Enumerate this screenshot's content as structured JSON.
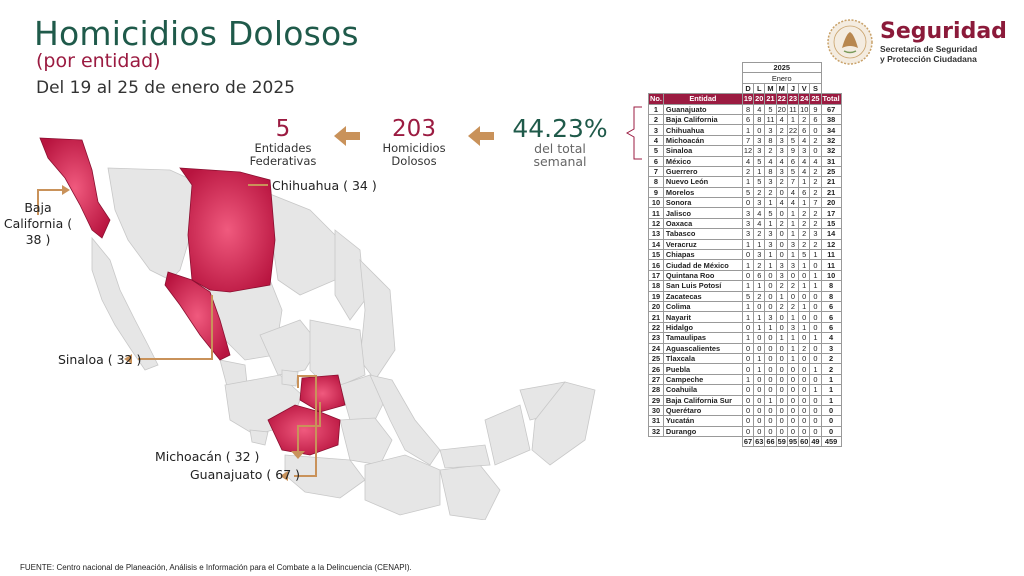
{
  "header": {
    "title": "Homicidios Dolosos",
    "subtitle": "(por entidad)",
    "dates": "Del 19 al 25 de enero de 2025"
  },
  "logo": {
    "main": "Seguridad",
    "sub1": "Secretaría de Seguridad",
    "sub2": "y Protección Ciudadana"
  },
  "stats": {
    "entities_value": "5",
    "entities_label1": "Entidades",
    "entities_label2": "Federativas",
    "homicides_value": "203",
    "homicides_label1": "Homicidios",
    "homicides_label2": "Dolosos",
    "percent_value": "44.23%",
    "percent_label1": "del total",
    "percent_label2": "semanal"
  },
  "colors": {
    "title_green": "#1f5a4a",
    "accent_red": "#9b1b41",
    "highlight_state": "#c2184a",
    "arrow_tan": "#c9925a",
    "map_grey": "#e6e6e6"
  },
  "callouts": {
    "baja_california_1": "Baja",
    "baja_california_2": "California (",
    "baja_california_3": "38 )",
    "chihuahua": "Chihuahua ( 34 )",
    "sinaloa": "Sinaloa ( 32 )",
    "michoacan": "Michoacán ( 32 )",
    "guanajuato": "Guanajuato ( 67 )"
  },
  "footer": "FUENTE: Centro nacional de Planeación, Análisis e Información para el Combate a la Delincuencia (CENAPI).",
  "chart_data": {
    "type": "table",
    "year": "2025",
    "month": "Enero",
    "day_letters": [
      "D",
      "L",
      "M",
      "M",
      "J",
      "V",
      "S"
    ],
    "day_numbers": [
      "19",
      "20",
      "21",
      "22",
      "23",
      "24",
      "25"
    ],
    "columns": [
      "No.",
      "Entidad",
      "19",
      "20",
      "21",
      "22",
      "23",
      "24",
      "25",
      "Total"
    ],
    "rows": [
      {
        "no": "1",
        "entidad": "Guanajuato",
        "values": [
          8,
          4,
          5,
          20,
          11,
          10,
          9
        ],
        "total": 67
      },
      {
        "no": "2",
        "entidad": "Baja California",
        "values": [
          6,
          8,
          11,
          4,
          1,
          2,
          6
        ],
        "total": 38
      },
      {
        "no": "3",
        "entidad": "Chihuahua",
        "values": [
          1,
          0,
          3,
          2,
          22,
          6,
          0
        ],
        "total": 34
      },
      {
        "no": "4",
        "entidad": "Michoacán",
        "values": [
          7,
          3,
          8,
          3,
          5,
          4,
          2
        ],
        "total": 32
      },
      {
        "no": "5",
        "entidad": "Sinaloa",
        "values": [
          12,
          3,
          2,
          3,
          9,
          3,
          0
        ],
        "total": 32
      },
      {
        "no": "6",
        "entidad": "México",
        "values": [
          4,
          5,
          4,
          4,
          6,
          4,
          4
        ],
        "total": 31
      },
      {
        "no": "7",
        "entidad": "Guerrero",
        "values": [
          2,
          1,
          8,
          3,
          5,
          4,
          2
        ],
        "total": 25
      },
      {
        "no": "8",
        "entidad": "Nuevo León",
        "values": [
          1,
          5,
          3,
          2,
          7,
          1,
          2
        ],
        "total": 21
      },
      {
        "no": "9",
        "entidad": "Morelos",
        "values": [
          5,
          2,
          2,
          0,
          4,
          6,
          2
        ],
        "total": 21
      },
      {
        "no": "10",
        "entidad": "Sonora",
        "values": [
          0,
          3,
          1,
          4,
          4,
          1,
          7
        ],
        "total": 20
      },
      {
        "no": "11",
        "entidad": "Jalisco",
        "values": [
          3,
          4,
          5,
          0,
          1,
          2,
          2
        ],
        "total": 17
      },
      {
        "no": "12",
        "entidad": "Oaxaca",
        "values": [
          3,
          4,
          1,
          2,
          1,
          2,
          2
        ],
        "total": 15
      },
      {
        "no": "13",
        "entidad": "Tabasco",
        "values": [
          3,
          2,
          3,
          0,
          1,
          2,
          3
        ],
        "total": 14
      },
      {
        "no": "14",
        "entidad": "Veracruz",
        "values": [
          1,
          1,
          3,
          0,
          3,
          2,
          2
        ],
        "total": 12
      },
      {
        "no": "15",
        "entidad": "Chiapas",
        "values": [
          0,
          3,
          1,
          0,
          1,
          5,
          1
        ],
        "total": 11
      },
      {
        "no": "16",
        "entidad": "Ciudad de México",
        "values": [
          1,
          2,
          1,
          3,
          3,
          1,
          0
        ],
        "total": 11
      },
      {
        "no": "17",
        "entidad": "Quintana Roo",
        "values": [
          0,
          6,
          0,
          3,
          0,
          0,
          1
        ],
        "total": 10
      },
      {
        "no": "18",
        "entidad": "San Luis Potosí",
        "values": [
          1,
          1,
          0,
          2,
          2,
          1,
          1
        ],
        "total": 8
      },
      {
        "no": "19",
        "entidad": "Zacatecas",
        "values": [
          5,
          2,
          0,
          1,
          0,
          0,
          0
        ],
        "total": 8
      },
      {
        "no": "20",
        "entidad": "Colima",
        "values": [
          1,
          0,
          0,
          2,
          2,
          1,
          0
        ],
        "total": 6
      },
      {
        "no": "21",
        "entidad": "Nayarit",
        "values": [
          1,
          1,
          3,
          0,
          1,
          0,
          0
        ],
        "total": 6
      },
      {
        "no": "22",
        "entidad": "Hidalgo",
        "values": [
          0,
          1,
          1,
          0,
          3,
          1,
          0
        ],
        "total": 6
      },
      {
        "no": "23",
        "entidad": "Tamaulipas",
        "values": [
          1,
          0,
          0,
          1,
          1,
          0,
          1
        ],
        "total": 4
      },
      {
        "no": "24",
        "entidad": "Aguascalientes",
        "values": [
          0,
          0,
          0,
          0,
          1,
          2,
          0
        ],
        "total": 3
      },
      {
        "no": "25",
        "entidad": "Tlaxcala",
        "values": [
          0,
          1,
          0,
          0,
          1,
          0,
          0
        ],
        "total": 2
      },
      {
        "no": "26",
        "entidad": "Puebla",
        "values": [
          0,
          1,
          0,
          0,
          0,
          0,
          1
        ],
        "total": 2
      },
      {
        "no": "27",
        "entidad": "Campeche",
        "values": [
          1,
          0,
          0,
          0,
          0,
          0,
          0
        ],
        "total": 1
      },
      {
        "no": "28",
        "entidad": "Coahuila",
        "values": [
          0,
          0,
          0,
          0,
          0,
          0,
          1
        ],
        "total": 1
      },
      {
        "no": "29",
        "entidad": "Baja California Sur",
        "values": [
          0,
          0,
          1,
          0,
          0,
          0,
          0
        ],
        "total": 1
      },
      {
        "no": "30",
        "entidad": "Querétaro",
        "values": [
          0,
          0,
          0,
          0,
          0,
          0,
          0
        ],
        "total": 0
      },
      {
        "no": "31",
        "entidad": "Yucatán",
        "values": [
          0,
          0,
          0,
          0,
          0,
          0,
          0
        ],
        "total": 0
      },
      {
        "no": "32",
        "entidad": "Durango",
        "values": [
          0,
          0,
          0,
          0,
          0,
          0,
          0
        ],
        "total": 0
      }
    ],
    "totals": {
      "values": [
        67,
        63,
        66,
        59,
        95,
        60,
        49
      ],
      "total": 459
    },
    "highlighted_states": [
      "Baja California",
      "Chihuahua",
      "Sinaloa",
      "Michoacán",
      "Guanajuato"
    ]
  }
}
